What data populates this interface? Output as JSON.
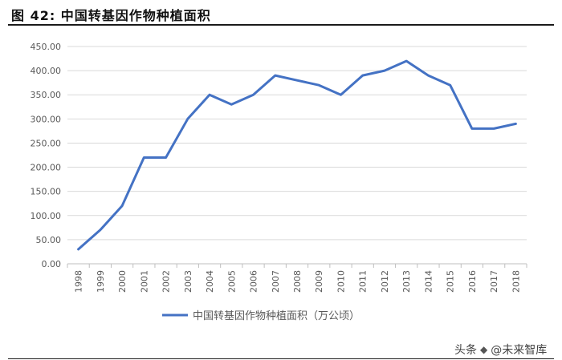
{
  "figure_title": "图 42: 中国转基因作物种植面积",
  "chart_data": {
    "type": "line",
    "title": "",
    "xlabel": "",
    "ylabel": "",
    "categories": [
      "1998",
      "1999",
      "2000",
      "2001",
      "2002",
      "2003",
      "2004",
      "2005",
      "2006",
      "2007",
      "2008",
      "2009",
      "2010",
      "2011",
      "2012",
      "2013",
      "2014",
      "2015",
      "2016",
      "2017",
      "2018"
    ],
    "series": [
      {
        "name": "中国转基因作物种植面积（万公顷）",
        "color": "#4472C4",
        "values": [
          30,
          70,
          120,
          220,
          220,
          300,
          350,
          330,
          350,
          390,
          380,
          370,
          350,
          390,
          400,
          420,
          390,
          370,
          280,
          280,
          290
        ]
      }
    ],
    "yticks": [
      "0.00",
      "50.00",
      "100.00",
      "150.00",
      "200.00",
      "250.00",
      "300.00",
      "350.00",
      "400.00",
      "450.00"
    ],
    "ylim": [
      0,
      450
    ],
    "grid": true,
    "legend_position": "bottom"
  },
  "watermark": {
    "prefix": "头条",
    "handle": "@未来智库",
    "logo_text": "未来智库"
  }
}
